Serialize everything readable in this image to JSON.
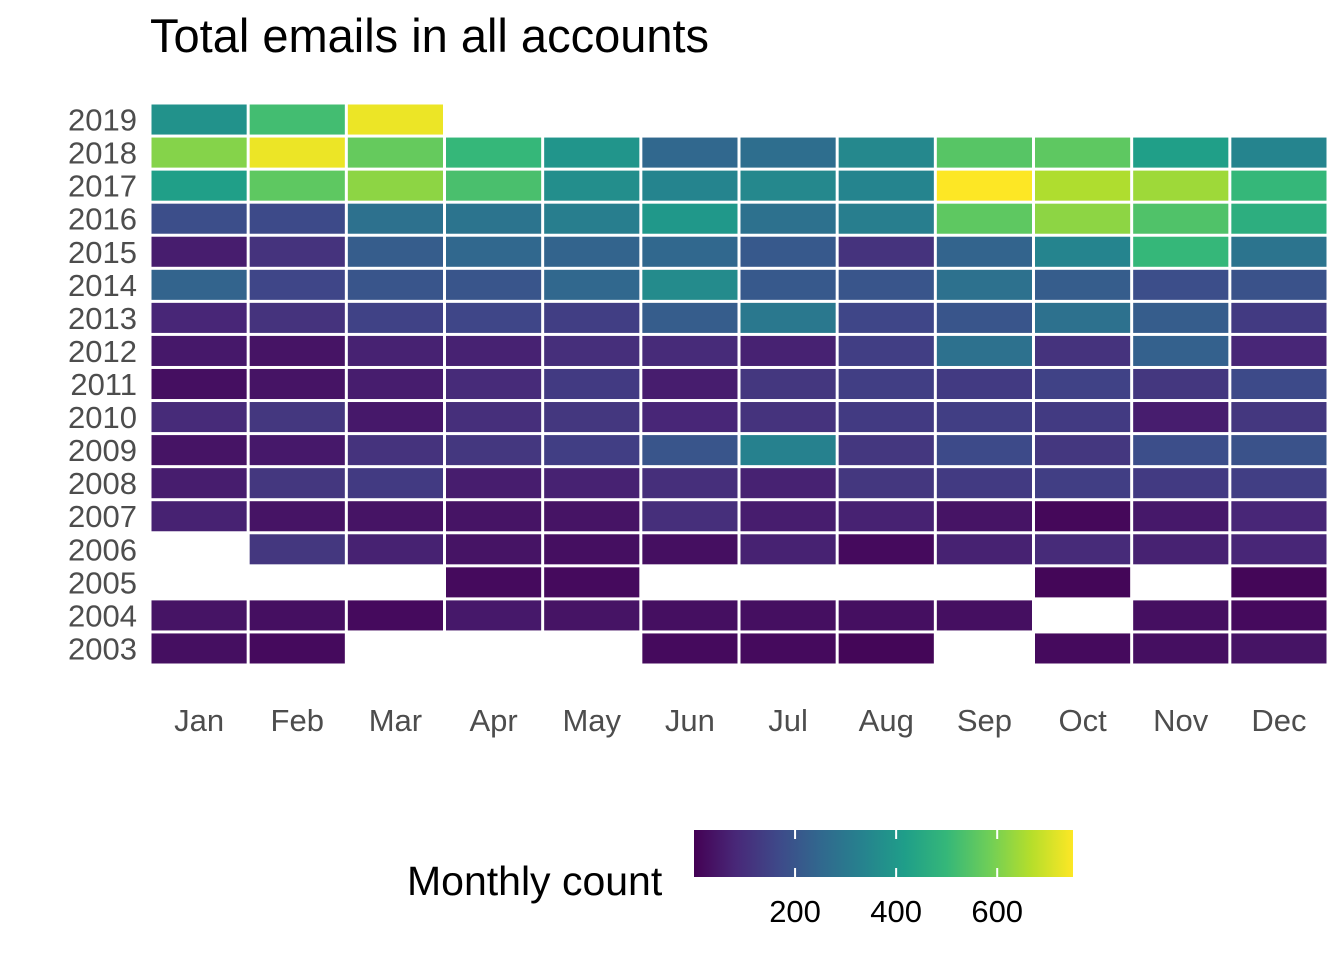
{
  "chart_data": {
    "type": "heatmap",
    "title": "Total emails in all accounts",
    "xlabel": "",
    "ylabel": "",
    "x_categories": [
      "Jan",
      "Feb",
      "Mar",
      "Apr",
      "May",
      "Jun",
      "Jul",
      "Aug",
      "Sep",
      "Oct",
      "Nov",
      "Dec"
    ],
    "y_categories": [
      "2003",
      "2004",
      "2005",
      "2006",
      "2007",
      "2008",
      "2009",
      "2010",
      "2011",
      "2012",
      "2013",
      "2014",
      "2015",
      "2016",
      "2017",
      "2018",
      "2019"
    ],
    "values": {
      "2019": [
        380,
        520,
        730,
        null,
        null,
        null,
        null,
        null,
        null,
        null,
        null,
        null
      ],
      "2018": [
        610,
        730,
        570,
        500,
        390,
        250,
        270,
        350,
        550,
        560,
        420,
        340
      ],
      "2017": [
        420,
        560,
        620,
        530,
        370,
        340,
        350,
        340,
        750,
        660,
        640,
        500
      ],
      "2016": [
        180,
        170,
        280,
        290,
        320,
        400,
        280,
        320,
        560,
        620,
        540,
        470
      ],
      "2015": [
        60,
        110,
        220,
        250,
        240,
        250,
        210,
        110,
        240,
        340,
        500,
        290
      ],
      "2014": [
        240,
        160,
        200,
        200,
        250,
        360,
        210,
        200,
        280,
        220,
        180,
        190
      ],
      "2013": [
        80,
        110,
        150,
        160,
        140,
        220,
        300,
        160,
        200,
        280,
        220,
        130
      ],
      "2012": [
        50,
        40,
        70,
        70,
        100,
        90,
        70,
        140,
        280,
        110,
        230,
        80
      ],
      "2011": [
        30,
        40,
        60,
        90,
        130,
        60,
        120,
        140,
        130,
        150,
        120,
        170
      ],
      "2010": [
        90,
        120,
        50,
        100,
        120,
        80,
        110,
        130,
        140,
        130,
        60,
        120
      ],
      "2009": [
        40,
        50,
        110,
        120,
        140,
        200,
        330,
        120,
        170,
        120,
        180,
        190
      ],
      "2008": [
        60,
        120,
        130,
        60,
        70,
        100,
        70,
        120,
        130,
        140,
        130,
        140
      ],
      "2007": [
        70,
        40,
        40,
        40,
        40,
        100,
        60,
        70,
        40,
        15,
        50,
        80
      ],
      "2006": [
        null,
        120,
        70,
        40,
        30,
        30,
        70,
        20,
        70,
        90,
        70,
        80
      ],
      "2005": [
        null,
        null,
        null,
        20,
        20,
        null,
        null,
        null,
        null,
        10,
        null,
        10
      ],
      "2004": [
        40,
        30,
        20,
        50,
        40,
        30,
        30,
        30,
        30,
        null,
        30,
        20
      ],
      "2003": [
        30,
        20,
        null,
        null,
        null,
        20,
        20,
        10,
        null,
        20,
        30,
        40
      ]
    },
    "legend": {
      "title": "Monthly count",
      "ticks": [
        200,
        400,
        600
      ],
      "tick_labels": [
        "200",
        "400",
        "600"
      ],
      "range": [
        0,
        750
      ],
      "palette": "viridis",
      "placement": "bottom"
    },
    "grid": false
  }
}
